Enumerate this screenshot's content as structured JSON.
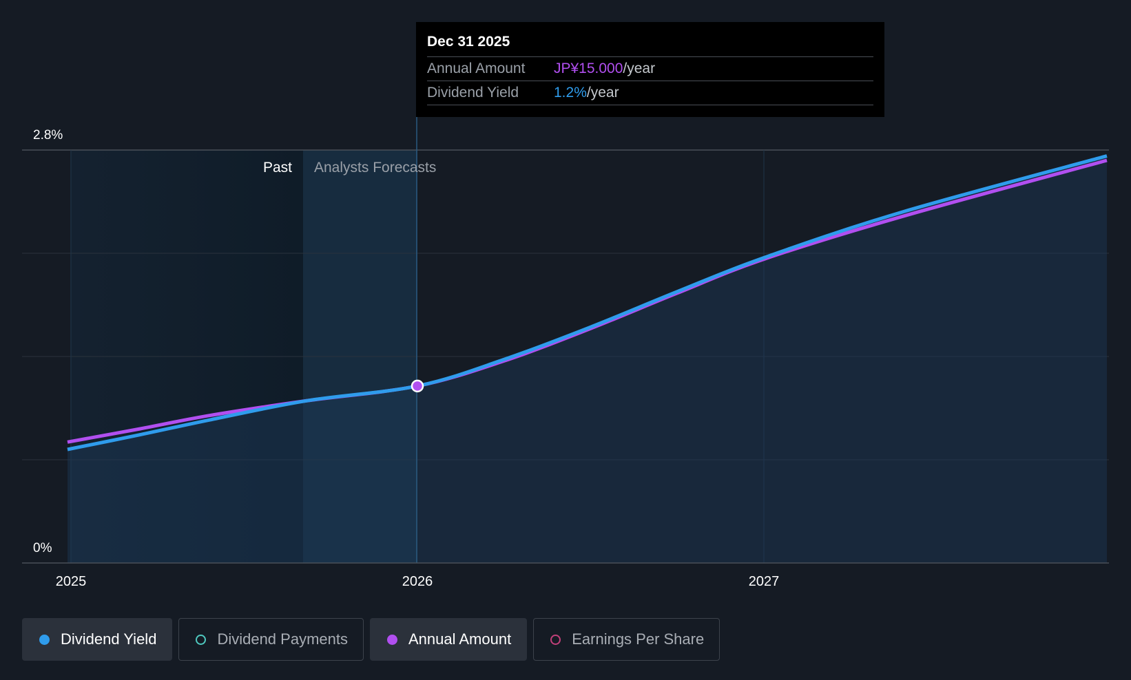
{
  "chart_data": {
    "type": "line",
    "ylim": [
      0,
      2.8
    ],
    "y_unit": "%",
    "y_tick_labels": [
      "2.8%",
      "0%"
    ],
    "x_tick_labels": [
      "2025",
      "2026",
      "2027"
    ],
    "region_labels": {
      "past": "Past",
      "forecast": "Analysts Forecasts"
    },
    "series": [
      {
        "name": "Dividend Yield",
        "color": "#2f9cec",
        "points": [
          [
            2024.99,
            0.77
          ],
          [
            2025.2,
            0.87
          ],
          [
            2025.4,
            0.97
          ],
          [
            2025.68,
            1.1
          ],
          [
            2026.0,
            1.2
          ],
          [
            2026.25,
            1.38
          ],
          [
            2026.5,
            1.6
          ],
          [
            2026.75,
            1.84
          ],
          [
            2027.0,
            2.07
          ],
          [
            2027.4,
            2.38
          ],
          [
            2027.99,
            2.76
          ]
        ]
      },
      {
        "name": "Annual Amount",
        "color": "#b14ff0",
        "points": [
          [
            2024.99,
            0.82
          ],
          [
            2025.2,
            0.91
          ],
          [
            2025.4,
            1.0
          ],
          [
            2025.68,
            1.1
          ],
          [
            2026.0,
            1.2
          ],
          [
            2026.25,
            1.37
          ],
          [
            2026.5,
            1.59
          ],
          [
            2026.75,
            1.83
          ],
          [
            2027.0,
            2.06
          ],
          [
            2027.4,
            2.35
          ],
          [
            2027.99,
            2.73
          ]
        ]
      }
    ],
    "highlight_x": 2026.0,
    "highlight_y": 1.2
  },
  "tooltip": {
    "date": "Dec 31 2025",
    "rows": [
      {
        "label": "Annual Amount",
        "value": "JP¥15.000",
        "unit": "/year"
      },
      {
        "label": "Dividend Yield",
        "value": "1.2%",
        "unit": "/year"
      }
    ]
  },
  "legend": [
    {
      "label": "Dividend Yield",
      "color": "#2f9cec",
      "active": true,
      "filled": true
    },
    {
      "label": "Dividend Payments",
      "color": "#4fc9c0",
      "active": false,
      "filled": false
    },
    {
      "label": "Annual Amount",
      "color": "#b14ff0",
      "active": true,
      "filled": true
    },
    {
      "label": "Earnings Per Share",
      "color": "#c2407a",
      "active": false,
      "filled": false
    }
  ]
}
